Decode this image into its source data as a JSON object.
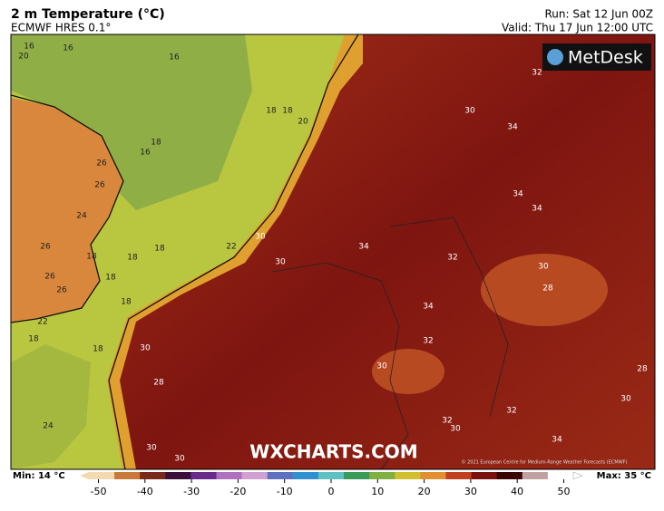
{
  "header": {
    "title": "2 m Temperature (°C)",
    "model": "ECMWF HRES 0.1°",
    "run": "Run: Sat 12 Jun 00Z",
    "valid": "Valid: Thu 17 Jun 12:00 UTC"
  },
  "logo": "MetDesk",
  "watermark": "WXCHARTS.COM",
  "copyright": "© 2021 European Centre for Medium-Range Weather Forecasts (ECMWF)",
  "contour_labels": [
    16,
    16,
    20,
    16,
    18,
    18,
    20,
    18,
    16,
    26,
    26,
    24,
    26,
    18,
    18,
    18,
    22,
    30,
    30,
    34,
    32,
    34,
    34,
    34,
    32,
    30,
    30,
    28,
    34,
    32,
    26,
    26,
    18,
    18,
    22,
    18,
    18,
    30,
    28,
    30,
    30,
    28,
    32,
    30,
    32,
    34,
    24,
    30,
    30
  ],
  "colorbar": {
    "min_label": "Min: 14 °C",
    "max_label": "Max: 35 °C",
    "lim": [
      -54,
      54
    ],
    "ticks": [
      -50,
      -40,
      -30,
      -20,
      -10,
      0,
      10,
      20,
      30,
      40,
      50
    ]
  }
}
